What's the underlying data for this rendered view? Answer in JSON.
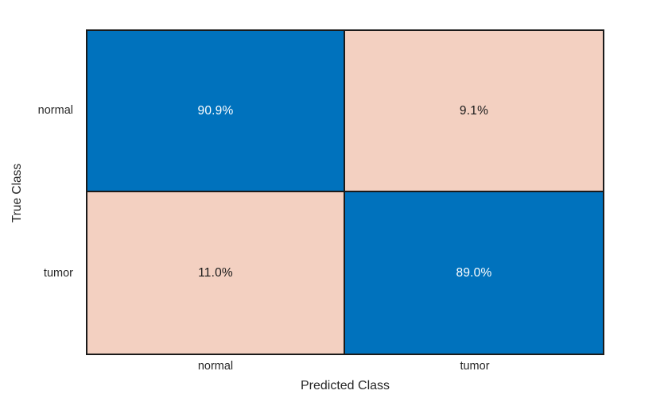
{
  "figure": {
    "background": "#ffffff"
  },
  "chart_data": {
    "type": "heatmap",
    "subtype": "confusion-matrix",
    "title": "",
    "xlabel": "Predicted Class",
    "ylabel": "True Class",
    "x_categories": [
      "normal",
      "tumor"
    ],
    "y_categories": [
      "normal",
      "tumor"
    ],
    "matrix_percent": [
      [
        90.9,
        9.1
      ],
      [
        11.0,
        89.0
      ]
    ],
    "cell_labels": [
      [
        "90.9%",
        "9.1%"
      ],
      [
        "11.0%",
        "89.0%"
      ]
    ],
    "normalization": "row-normalized percentages",
    "legend": "none",
    "grid": "cell borders only",
    "colors": {
      "diagonal_cell": "#0072bd",
      "off_diagonal_cell": "#f3d0c1",
      "cell_text_on_diagonal": "#ffffff",
      "cell_text_on_off_diagonal": "#1a1a1a",
      "grid_line": "#1a1a1a",
      "tick_label": "#262626",
      "background": "#ffffff"
    }
  }
}
